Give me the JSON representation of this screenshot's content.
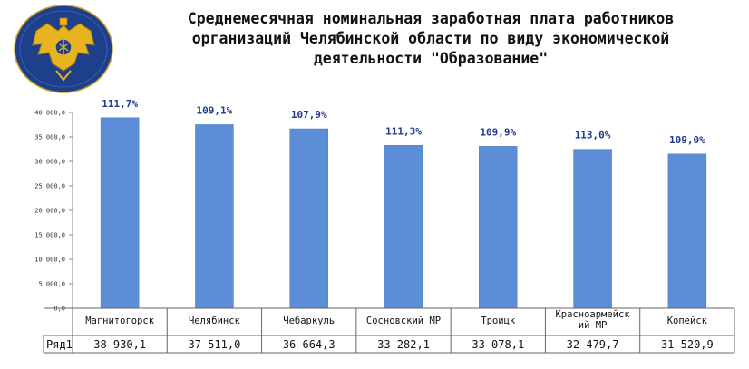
{
  "title_lines": [
    "Среднемесячная номинальная заработная плата работников",
    "организаций Челябинской области по виду экономической",
    "деятельности \"Образование\""
  ],
  "colors": {
    "bar": "#5b8ed6",
    "bar_stroke": "#4a7cc4",
    "data_label": "#1f3a93",
    "emblem_blue": "#1e3f8a",
    "emblem_gold": "#e8b320"
  },
  "icons": {
    "emblem": "rosstat-emblem-icon"
  },
  "chart_data": {
    "type": "bar",
    "categories": [
      "Магнитогорск",
      "Челябинск",
      "Чебаркуль",
      "Сосновский МР",
      "Троицк",
      "Красноармейский МР",
      "Копейск"
    ],
    "category_lines": [
      [
        "Магнитогорск"
      ],
      [
        "Челябинск"
      ],
      [
        "Чебаркуль"
      ],
      [
        "Сосновский МР"
      ],
      [
        "Троицк"
      ],
      [
        "Красноармейск",
        "ий МР"
      ],
      [
        "Копейск"
      ]
    ],
    "series": [
      {
        "name": "Ряд1",
        "values": [
          38930.1,
          37511.0,
          36664.3,
          33282.1,
          33078.1,
          32479.7,
          31520.9
        ]
      }
    ],
    "value_labels": [
      "38 930,1",
      "37 511,0",
      "36 664,3",
      "33 282,1",
      "33 078,1",
      "32 479,7",
      "31 520,9"
    ],
    "data_labels": [
      "111,7%",
      "109,1%",
      "107,9%",
      "111,3%",
      "109,9%",
      "113,0%",
      "109,0%"
    ],
    "yticks": [
      "0,0",
      "5 000,0",
      "10 000,0",
      "15 000,0",
      "20 000,0",
      "25 000,0",
      "30 000,0",
      "35 000,0",
      "40 000,0"
    ],
    "ylim": [
      0,
      40000
    ],
    "grid": false,
    "legend": "data-table",
    "xlabel": "",
    "ylabel": ""
  }
}
